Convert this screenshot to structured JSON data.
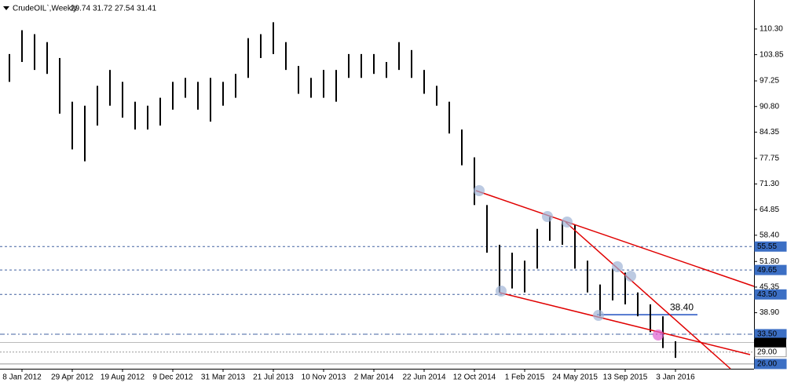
{
  "chart_data": {
    "type": "hl-bar",
    "symbol": "CrudeOIL`,Weekly",
    "last": {
      "open": 29.74,
      "high": 31.72,
      "low": 27.54,
      "close": 31.41
    },
    "color": "#000000",
    "categories": [
      null,
      "8 Jan 2012",
      null,
      null,
      null,
      "29 Apr 2012",
      null,
      null,
      null,
      "19 Aug 2012",
      null,
      null,
      null,
      "9 Dec 2012",
      null,
      null,
      null,
      "31 Mar 2013",
      null,
      null,
      null,
      "21 Jul 2013",
      null,
      null,
      null,
      "10 Nov 2013",
      null,
      null,
      null,
      "2 Mar 2014",
      null,
      null,
      null,
      "22 Jun 2014",
      null,
      null,
      null,
      "12 Oct 2014",
      null,
      null,
      null,
      "1 Feb 2015",
      null,
      null,
      null,
      "24 May 2015",
      null,
      null,
      null,
      "13 Sep 2015",
      null,
      null,
      null,
      "3 Jan 2016"
    ],
    "high": [
      104,
      110,
      109,
      107,
      103,
      92,
      91,
      96,
      100,
      97,
      92,
      91,
      93,
      97,
      98,
      97,
      98,
      97,
      99,
      108,
      109,
      112,
      107,
      101,
      98,
      100,
      100,
      104,
      104,
      104,
      102,
      107,
      105,
      100,
      96,
      92,
      85,
      78,
      66,
      56,
      54,
      52,
      60,
      63,
      62,
      61,
      52,
      46,
      50,
      49,
      44,
      41,
      38,
      31.72
    ],
    "low": [
      97,
      102,
      100,
      99,
      89,
      80,
      77,
      86,
      91,
      88,
      85,
      85,
      86,
      90,
      93,
      90,
      87,
      91,
      93,
      98,
      103,
      104,
      100,
      94,
      93,
      93,
      92,
      98,
      98,
      99,
      98,
      100,
      98,
      94,
      91,
      84,
      76,
      66,
      54,
      44,
      45,
      44,
      50,
      57,
      56,
      50,
      44,
      38,
      42,
      41,
      38,
      34,
      30,
      27.54
    ],
    "ylim": [
      24.8,
      117.6
    ],
    "yticks": [
      {
        "value": 110.3,
        "label": "110.30"
      },
      {
        "value": 103.85,
        "label": "103.85"
      },
      {
        "value": 97.25,
        "label": "97.25"
      },
      {
        "value": 90.8,
        "label": "90.80"
      },
      {
        "value": 84.35,
        "label": "84.35"
      },
      {
        "value": 77.75,
        "label": "77.75"
      },
      {
        "value": 71.3,
        "label": "71.30"
      },
      {
        "value": 64.85,
        "label": "64.85"
      },
      {
        "value": 58.4,
        "label": "58.40"
      },
      {
        "value": 51.8,
        "label": "51.80"
      },
      {
        "value": 45.35,
        "label": "45.35"
      },
      {
        "value": 38.9,
        "label": "38.90"
      }
    ],
    "levels": [
      {
        "value": 55.55,
        "label": "55.55"
      },
      {
        "value": 49.65,
        "label": "49.65"
      },
      {
        "value": 43.5,
        "label": "43.50"
      },
      {
        "value": 33.5,
        "label": "33.50"
      },
      {
        "value": 29,
        "label": "29.00"
      },
      {
        "value": 26,
        "label": "26.00"
      }
    ],
    "annotation": {
      "value": 38.4,
      "label": "38.40"
    }
  }
}
